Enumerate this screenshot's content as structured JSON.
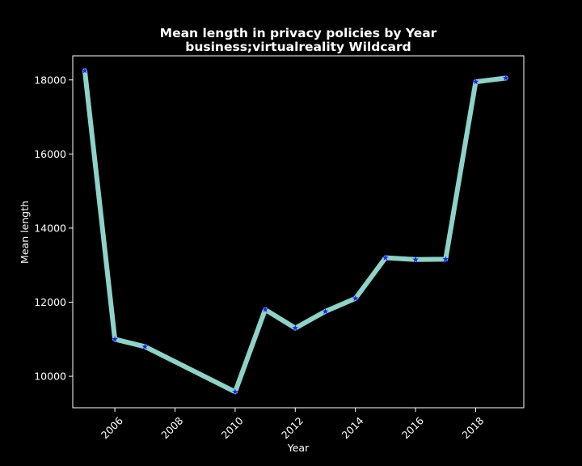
{
  "chart_data": {
    "type": "line",
    "title": "Mean length in privacy policies by Year",
    "subtitle": "business;virtualreality Wildcard",
    "xlabel": "Year",
    "ylabel": "Mean length",
    "xlim": [
      2004.6,
      2019.6
    ],
    "ylim": [
      9150,
      18650
    ],
    "x_ticks": [
      "2006",
      "2008",
      "2010",
      "2012",
      "2014",
      "2016",
      "2018"
    ],
    "y_ticks": [
      "10000",
      "12000",
      "14000",
      "16000",
      "18000"
    ],
    "grid": false,
    "series": [
      {
        "x": [
          2005,
          2006,
          2007,
          2010,
          2011,
          2012,
          2013,
          2014,
          2015,
          2016,
          2017,
          2018,
          2019
        ],
        "y": [
          18250,
          11000,
          10800,
          9580,
          11800,
          11300,
          11750,
          12100,
          13200,
          13150,
          13160,
          17950,
          18050
        ],
        "line_color": "#8dd3c7",
        "marker_color": "#1f1fff",
        "marker": "star"
      }
    ],
    "background": "#000000",
    "foreground": "#ffffff"
  }
}
